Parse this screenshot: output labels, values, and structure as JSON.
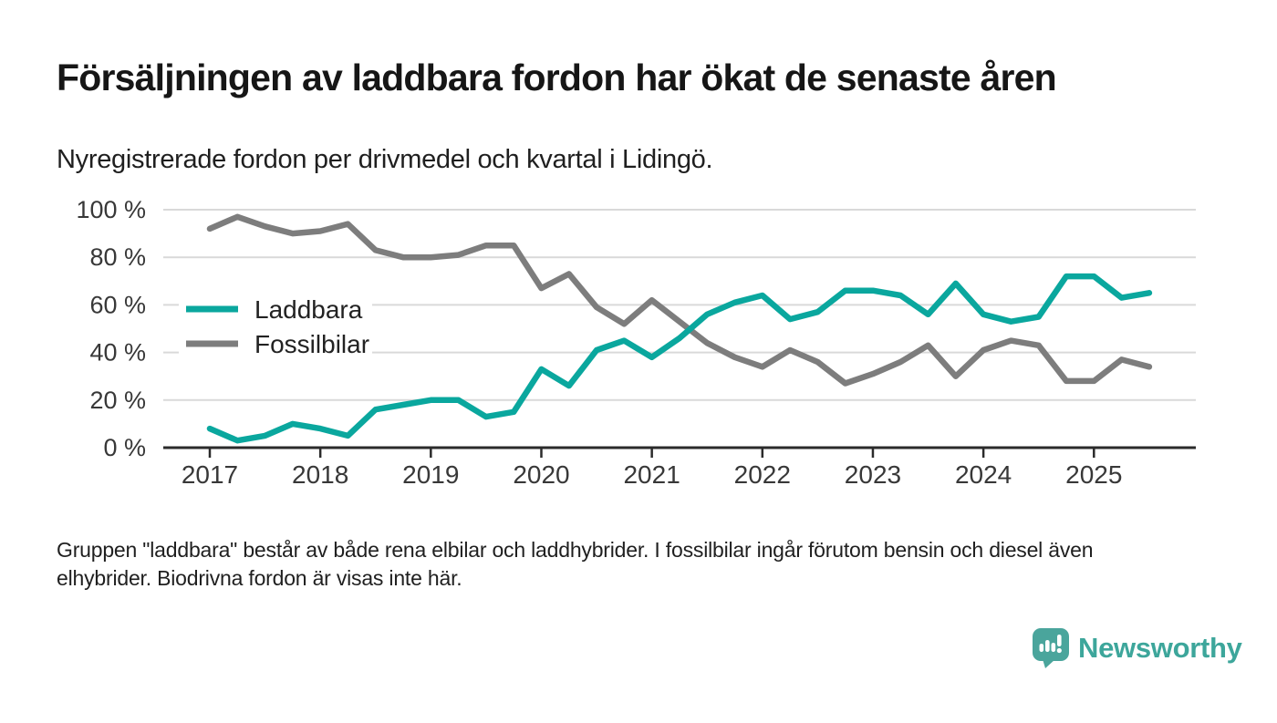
{
  "page": {
    "title": "Försäljningen av laddbara fordon har ökat de senaste åren",
    "subtitle": "Nyregistrerade fordon per drivmedel och kvartal i Lidingö.",
    "note_lines": [
      "Gruppen \"laddbara\" består av både rena elbilar och laddhybrider. I fossilbilar ingår förutom bensin och diesel även",
      "elhybrider. Biodrivna fordon är visas inte här."
    ],
    "brand": "Newsworthy"
  },
  "colors": {
    "accent_teal": "#0aa79e",
    "series_gray": "#7d7d7d",
    "grid": "#d9d9d9",
    "axis": "#2b2b2b",
    "axis_text": "#383838",
    "title_text": "#161616",
    "brand_teal": "#3da69b",
    "background": "#ffffff"
  },
  "chart_data": {
    "type": "line",
    "title": "Försäljningen av laddbara fordon har ökat de senaste åren",
    "subtitle": "Nyregistrerade fordon per drivmedel och kvartal i Lidingö.",
    "x_unit": "kvartal",
    "x": [
      "2017K1",
      "2017K2",
      "2017K3",
      "2017K4",
      "2018K1",
      "2018K2",
      "2018K3",
      "2018K4",
      "2019K1",
      "2019K2",
      "2019K3",
      "2019K4",
      "2020K1",
      "2020K2",
      "2020K3",
      "2020K4",
      "2021K1",
      "2021K2",
      "2021K3",
      "2021K4",
      "2022K1",
      "2022K2",
      "2022K3",
      "2022K4",
      "2023K1",
      "2023K2",
      "2023K3",
      "2023K4",
      "2024K1",
      "2024K2",
      "2024K3",
      "2024K4",
      "2025K1",
      "2025K2",
      "2025K3"
    ],
    "series": [
      {
        "name": "Laddbara",
        "color": "#0aa79e",
        "values": [
          8,
          3,
          5,
          10,
          8,
          5,
          16,
          18,
          20,
          20,
          13,
          15,
          33,
          26,
          41,
          45,
          38,
          46,
          56,
          61,
          64,
          54,
          57,
          66,
          66,
          64,
          56,
          69,
          56,
          53,
          55,
          72,
          72,
          63,
          65
        ]
      },
      {
        "name": "Fossilbilar",
        "color": "#7d7d7d",
        "values": [
          92,
          97,
          93,
          90,
          91,
          94,
          83,
          80,
          80,
          81,
          85,
          85,
          67,
          73,
          59,
          52,
          62,
          53,
          44,
          38,
          34,
          41,
          36,
          27,
          31,
          36,
          43,
          30,
          41,
          45,
          43,
          28,
          28,
          37,
          34
        ]
      }
    ],
    "xlabel": "",
    "ylabel": "",
    "ylim": [
      0,
      100
    ],
    "yticks": [
      0,
      20,
      40,
      60,
      80,
      100
    ],
    "ytick_suffix": " %",
    "x_tick_years": [
      "2017",
      "2018",
      "2019",
      "2020",
      "2021",
      "2022",
      "2023",
      "2024",
      "2025"
    ],
    "grid": true,
    "legend_position": "inside-top-left"
  }
}
